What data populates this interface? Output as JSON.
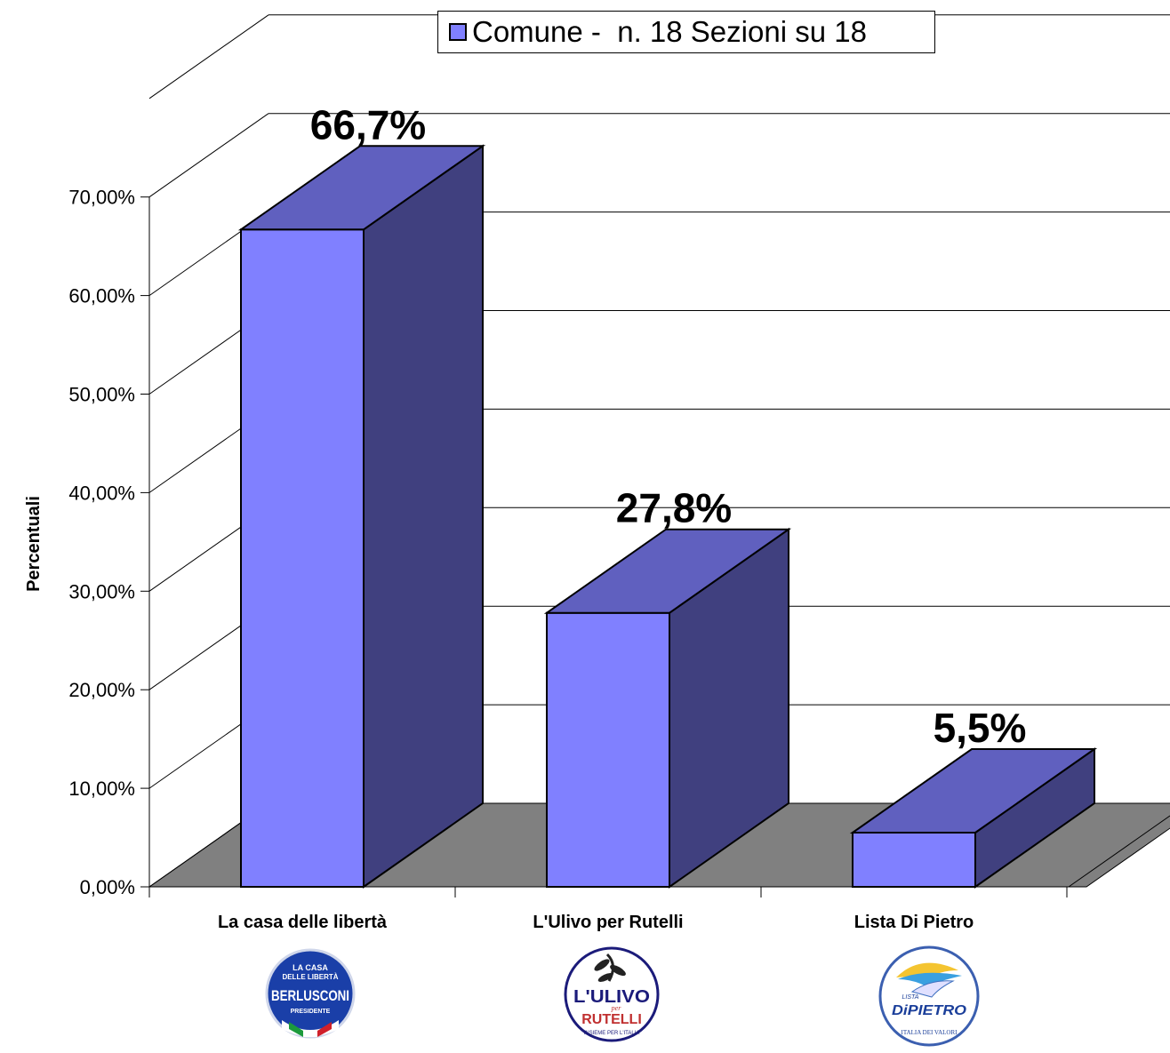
{
  "chart_data": {
    "type": "bar",
    "categories": [
      "La casa delle libertà",
      "L'Ulivo per Rutelli",
      "Lista Di Pietro"
    ],
    "series": [
      {
        "name": "Comune -  n. 18 Sezioni su 18",
        "values": [
          66.7,
          27.8,
          5.5
        ],
        "color": "#8080ff"
      }
    ],
    "data_labels": [
      "66,7%",
      "27,8%",
      "5,5%"
    ],
    "ylabel": "Percentuali",
    "xlabel": "",
    "ylim": [
      0,
      70
    ],
    "yticks": [
      "0,00%",
      "10,00%",
      "20,00%",
      "30,00%",
      "40,00%",
      "50,00%",
      "60,00%",
      "70,00%"
    ],
    "grid": true,
    "legend_position": "top-center",
    "three_d": true
  },
  "colors": {
    "bar_front": "#8080ff",
    "bar_top": "#6060bf",
    "bar_side": "#40407f",
    "floor": "#808080"
  },
  "logos": [
    {
      "icon": "casa-delle-liberta-logo",
      "lines": [
        "LA CASA",
        "DELLE LIBERTÀ",
        "BERLUSCONI",
        "PRESIDENTE"
      ]
    },
    {
      "icon": "ulivo-logo",
      "lines": [
        "L'ULIVO",
        "per",
        "RUTELLI",
        "INSIEME PER L'ITALIA"
      ]
    },
    {
      "icon": "dipietro-logo",
      "lines": [
        "LISTA",
        "DiPIETRO",
        "ITALIA DEI VALORI"
      ]
    }
  ]
}
